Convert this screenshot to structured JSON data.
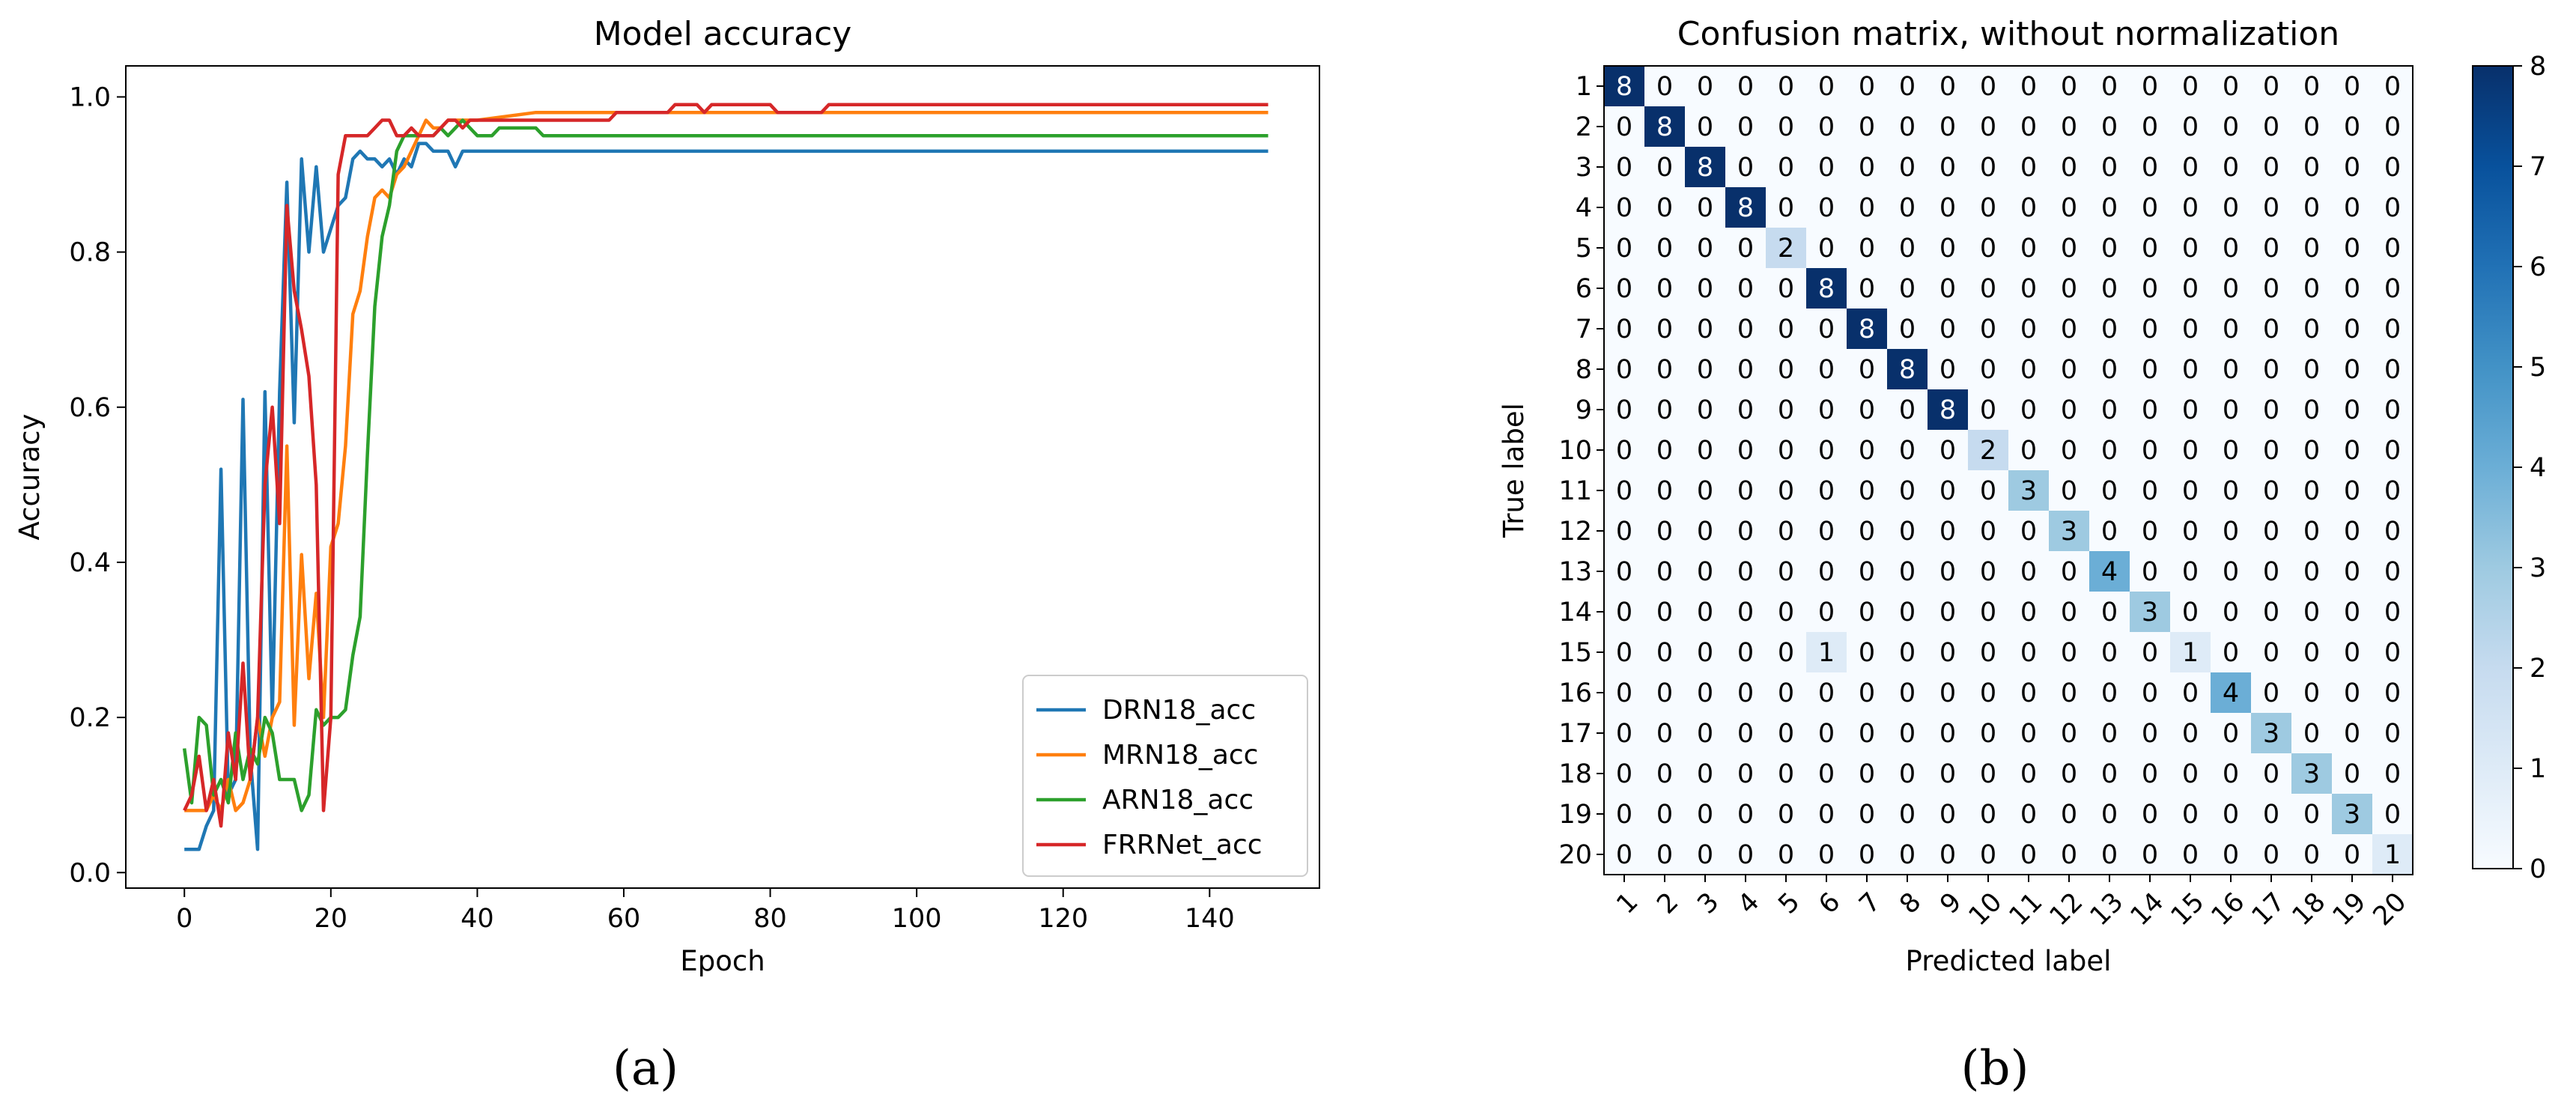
{
  "chart_data": [
    {
      "type": "line",
      "title": "Model accuracy",
      "xlabel": "Epoch",
      "ylabel": "Accuracy",
      "xlim": [
        -8,
        155
      ],
      "ylim": [
        -0.02,
        1.04
      ],
      "xticks": [
        0,
        20,
        40,
        60,
        80,
        100,
        120,
        140
      ],
      "yticks": [
        0.0,
        0.2,
        0.4,
        0.6,
        0.8,
        1.0
      ],
      "ytick_labels": [
        "0.0",
        "0.2",
        "0.4",
        "0.6",
        "0.8",
        "1.0"
      ],
      "grid": false,
      "legend_position": "lower-right",
      "series": [
        {
          "name": "DRN18_acc",
          "color": "#1f77b4",
          "points": [
            [
              0,
              0.03
            ],
            [
              1,
              0.03
            ],
            [
              2,
              0.03
            ],
            [
              3,
              0.06
            ],
            [
              4,
              0.08
            ],
            [
              5,
              0.52
            ],
            [
              6,
              0.1
            ],
            [
              7,
              0.12
            ],
            [
              8,
              0.61
            ],
            [
              9,
              0.15
            ],
            [
              10,
              0.03
            ],
            [
              11,
              0.62
            ],
            [
              12,
              0.2
            ],
            [
              13,
              0.62
            ],
            [
              14,
              0.89
            ],
            [
              15,
              0.58
            ],
            [
              16,
              0.92
            ],
            [
              17,
              0.8
            ],
            [
              18,
              0.91
            ],
            [
              19,
              0.8
            ],
            [
              20,
              0.83
            ],
            [
              21,
              0.86
            ],
            [
              22,
              0.87
            ],
            [
              23,
              0.92
            ],
            [
              24,
              0.93
            ],
            [
              25,
              0.92
            ],
            [
              26,
              0.92
            ],
            [
              27,
              0.91
            ],
            [
              28,
              0.92
            ],
            [
              29,
              0.9
            ],
            [
              30,
              0.92
            ],
            [
              31,
              0.91
            ],
            [
              32,
              0.94
            ],
            [
              33,
              0.94
            ],
            [
              34,
              0.93
            ],
            [
              35,
              0.93
            ],
            [
              36,
              0.93
            ],
            [
              37,
              0.91
            ],
            [
              38,
              0.93
            ],
            [
              40,
              0.93
            ],
            [
              148,
              0.93
            ]
          ]
        },
        {
          "name": "MRN18_acc",
          "color": "#ff7f0e",
          "points": [
            [
              0,
              0.08
            ],
            [
              3,
              0.08
            ],
            [
              4,
              0.1
            ],
            [
              5,
              0.08
            ],
            [
              6,
              0.12
            ],
            [
              7,
              0.08
            ],
            [
              8,
              0.09
            ],
            [
              9,
              0.12
            ],
            [
              10,
              0.2
            ],
            [
              11,
              0.15
            ],
            [
              12,
              0.2
            ],
            [
              13,
              0.22
            ],
            [
              14,
              0.55
            ],
            [
              15,
              0.19
            ],
            [
              16,
              0.41
            ],
            [
              17,
              0.25
            ],
            [
              18,
              0.36
            ],
            [
              19,
              0.2
            ],
            [
              20,
              0.42
            ],
            [
              21,
              0.45
            ],
            [
              22,
              0.55
            ],
            [
              23,
              0.72
            ],
            [
              24,
              0.75
            ],
            [
              25,
              0.82
            ],
            [
              26,
              0.87
            ],
            [
              27,
              0.88
            ],
            [
              28,
              0.87
            ],
            [
              29,
              0.9
            ],
            [
              30,
              0.91
            ],
            [
              31,
              0.93
            ],
            [
              32,
              0.95
            ],
            [
              33,
              0.97
            ],
            [
              34,
              0.96
            ],
            [
              35,
              0.96
            ],
            [
              36,
              0.97
            ],
            [
              38,
              0.97
            ],
            [
              40,
              0.97
            ],
            [
              48,
              0.98
            ],
            [
              148,
              0.98
            ]
          ]
        },
        {
          "name": "ARN18_acc",
          "color": "#2ca02c",
          "points": [
            [
              0,
              0.16
            ],
            [
              1,
              0.09
            ],
            [
              2,
              0.2
            ],
            [
              3,
              0.19
            ],
            [
              4,
              0.1
            ],
            [
              5,
              0.12
            ],
            [
              6,
              0.09
            ],
            [
              7,
              0.18
            ],
            [
              8,
              0.12
            ],
            [
              9,
              0.16
            ],
            [
              10,
              0.14
            ],
            [
              11,
              0.2
            ],
            [
              12,
              0.18
            ],
            [
              13,
              0.12
            ],
            [
              14,
              0.12
            ],
            [
              15,
              0.12
            ],
            [
              16,
              0.08
            ],
            [
              17,
              0.1
            ],
            [
              18,
              0.21
            ],
            [
              19,
              0.19
            ],
            [
              20,
              0.2
            ],
            [
              21,
              0.2
            ],
            [
              22,
              0.21
            ],
            [
              23,
              0.28
            ],
            [
              24,
              0.33
            ],
            [
              25,
              0.54
            ],
            [
              26,
              0.73
            ],
            [
              27,
              0.82
            ],
            [
              28,
              0.86
            ],
            [
              29,
              0.93
            ],
            [
              30,
              0.95
            ],
            [
              31,
              0.95
            ],
            [
              32,
              0.95
            ],
            [
              33,
              0.95
            ],
            [
              34,
              0.95
            ],
            [
              35,
              0.96
            ],
            [
              36,
              0.95
            ],
            [
              37,
              0.96
            ],
            [
              38,
              0.97
            ],
            [
              39,
              0.96
            ],
            [
              40,
              0.95
            ],
            [
              42,
              0.95
            ],
            [
              43,
              0.96
            ],
            [
              48,
              0.96
            ],
            [
              49,
              0.95
            ],
            [
              148,
              0.95
            ]
          ]
        },
        {
          "name": "FRRNet_acc",
          "color": "#d62728",
          "points": [
            [
              0,
              0.08
            ],
            [
              1,
              0.1
            ],
            [
              2,
              0.15
            ],
            [
              3,
              0.08
            ],
            [
              4,
              0.12
            ],
            [
              5,
              0.06
            ],
            [
              6,
              0.18
            ],
            [
              7,
              0.12
            ],
            [
              8,
              0.27
            ],
            [
              9,
              0.12
            ],
            [
              10,
              0.2
            ],
            [
              11,
              0.5
            ],
            [
              12,
              0.6
            ],
            [
              13,
              0.45
            ],
            [
              14,
              0.86
            ],
            [
              15,
              0.75
            ],
            [
              16,
              0.7
            ],
            [
              17,
              0.64
            ],
            [
              18,
              0.5
            ],
            [
              19,
              0.08
            ],
            [
              20,
              0.2
            ],
            [
              21,
              0.9
            ],
            [
              22,
              0.95
            ],
            [
              23,
              0.95
            ],
            [
              24,
              0.95
            ],
            [
              25,
              0.95
            ],
            [
              26,
              0.96
            ],
            [
              27,
              0.97
            ],
            [
              28,
              0.97
            ],
            [
              29,
              0.95
            ],
            [
              30,
              0.95
            ],
            [
              31,
              0.96
            ],
            [
              32,
              0.95
            ],
            [
              33,
              0.95
            ],
            [
              34,
              0.95
            ],
            [
              35,
              0.96
            ],
            [
              36,
              0.97
            ],
            [
              37,
              0.97
            ],
            [
              38,
              0.96
            ],
            [
              39,
              0.97
            ],
            [
              40,
              0.97
            ],
            [
              58,
              0.97
            ],
            [
              59,
              0.98
            ],
            [
              66,
              0.98
            ],
            [
              67,
              0.99
            ],
            [
              70,
              0.99
            ],
            [
              71,
              0.98
            ],
            [
              72,
              0.99
            ],
            [
              80,
              0.99
            ],
            [
              81,
              0.98
            ],
            [
              87,
              0.98
            ],
            [
              88,
              0.99
            ],
            [
              148,
              0.99
            ]
          ]
        }
      ]
    },
    {
      "type": "heatmap",
      "title": "Confusion matrix, without normalization",
      "xlabel": "Predicted label",
      "ylabel": "True label",
      "labels": [
        "1",
        "2",
        "3",
        "4",
        "5",
        "6",
        "7",
        "8",
        "9",
        "10",
        "11",
        "12",
        "13",
        "14",
        "15",
        "16",
        "17",
        "18",
        "19",
        "20"
      ],
      "colormap": "Blues",
      "vmin": 0,
      "vmax": 8,
      "colorbar_ticks": [
        0,
        1,
        2,
        3,
        4,
        5,
        6,
        7,
        8
      ],
      "colorbar_tick_labels": [
        "0",
        "1",
        "2",
        "3",
        "4",
        "5",
        "6",
        "7",
        "8"
      ],
      "matrix": [
        [
          8,
          0,
          0,
          0,
          0,
          0,
          0,
          0,
          0,
          0,
          0,
          0,
          0,
          0,
          0,
          0,
          0,
          0,
          0,
          0
        ],
        [
          0,
          8,
          0,
          0,
          0,
          0,
          0,
          0,
          0,
          0,
          0,
          0,
          0,
          0,
          0,
          0,
          0,
          0,
          0,
          0
        ],
        [
          0,
          0,
          8,
          0,
          0,
          0,
          0,
          0,
          0,
          0,
          0,
          0,
          0,
          0,
          0,
          0,
          0,
          0,
          0,
          0
        ],
        [
          0,
          0,
          0,
          8,
          0,
          0,
          0,
          0,
          0,
          0,
          0,
          0,
          0,
          0,
          0,
          0,
          0,
          0,
          0,
          0
        ],
        [
          0,
          0,
          0,
          0,
          2,
          0,
          0,
          0,
          0,
          0,
          0,
          0,
          0,
          0,
          0,
          0,
          0,
          0,
          0,
          0
        ],
        [
          0,
          0,
          0,
          0,
          0,
          8,
          0,
          0,
          0,
          0,
          0,
          0,
          0,
          0,
          0,
          0,
          0,
          0,
          0,
          0
        ],
        [
          0,
          0,
          0,
          0,
          0,
          0,
          8,
          0,
          0,
          0,
          0,
          0,
          0,
          0,
          0,
          0,
          0,
          0,
          0,
          0
        ],
        [
          0,
          0,
          0,
          0,
          0,
          0,
          0,
          8,
          0,
          0,
          0,
          0,
          0,
          0,
          0,
          0,
          0,
          0,
          0,
          0
        ],
        [
          0,
          0,
          0,
          0,
          0,
          0,
          0,
          0,
          8,
          0,
          0,
          0,
          0,
          0,
          0,
          0,
          0,
          0,
          0,
          0
        ],
        [
          0,
          0,
          0,
          0,
          0,
          0,
          0,
          0,
          0,
          2,
          0,
          0,
          0,
          0,
          0,
          0,
          0,
          0,
          0,
          0
        ],
        [
          0,
          0,
          0,
          0,
          0,
          0,
          0,
          0,
          0,
          0,
          3,
          0,
          0,
          0,
          0,
          0,
          0,
          0,
          0,
          0
        ],
        [
          0,
          0,
          0,
          0,
          0,
          0,
          0,
          0,
          0,
          0,
          0,
          3,
          0,
          0,
          0,
          0,
          0,
          0,
          0,
          0
        ],
        [
          0,
          0,
          0,
          0,
          0,
          0,
          0,
          0,
          0,
          0,
          0,
          0,
          4,
          0,
          0,
          0,
          0,
          0,
          0,
          0
        ],
        [
          0,
          0,
          0,
          0,
          0,
          0,
          0,
          0,
          0,
          0,
          0,
          0,
          0,
          3,
          0,
          0,
          0,
          0,
          0,
          0
        ],
        [
          0,
          0,
          0,
          0,
          0,
          1,
          0,
          0,
          0,
          0,
          0,
          0,
          0,
          0,
          1,
          0,
          0,
          0,
          0,
          0
        ],
        [
          0,
          0,
          0,
          0,
          0,
          0,
          0,
          0,
          0,
          0,
          0,
          0,
          0,
          0,
          0,
          4,
          0,
          0,
          0,
          0
        ],
        [
          0,
          0,
          0,
          0,
          0,
          0,
          0,
          0,
          0,
          0,
          0,
          0,
          0,
          0,
          0,
          0,
          3,
          0,
          0,
          0
        ],
        [
          0,
          0,
          0,
          0,
          0,
          0,
          0,
          0,
          0,
          0,
          0,
          0,
          0,
          0,
          0,
          0,
          0,
          3,
          0,
          0
        ],
        [
          0,
          0,
          0,
          0,
          0,
          0,
          0,
          0,
          0,
          0,
          0,
          0,
          0,
          0,
          0,
          0,
          0,
          0,
          3,
          0
        ],
        [
          0,
          0,
          0,
          0,
          0,
          0,
          0,
          0,
          0,
          0,
          0,
          0,
          0,
          0,
          0,
          0,
          0,
          0,
          0,
          1
        ]
      ]
    }
  ],
  "captions": {
    "a": "(a)",
    "b": "(b)"
  }
}
